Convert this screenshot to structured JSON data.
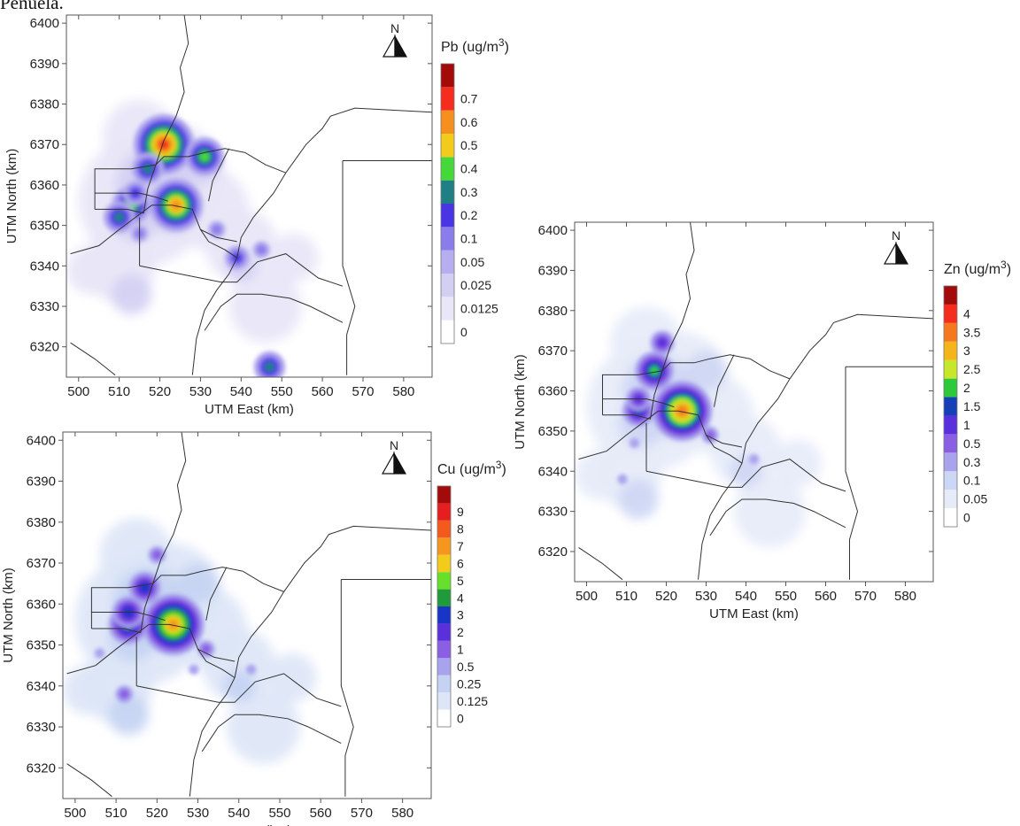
{
  "page": {
    "header_fragment": "Peñuela."
  },
  "chart_data": [
    {
      "id": "pb",
      "type": "heatmap",
      "title": "Pb (ug/m3)",
      "title_main": "Pb (ug/m",
      "title_sup": "3",
      "title_end": ")",
      "north_label": "N",
      "xlabel": "UTM East (km)",
      "ylabel": "UTM North (km)",
      "xlim": [
        497,
        587
      ],
      "ylim": [
        6312.5,
        6402
      ],
      "xticks": [
        500,
        510,
        520,
        530,
        540,
        550,
        560,
        570,
        580
      ],
      "yticks": [
        6320,
        6330,
        6340,
        6350,
        6360,
        6370,
        6380,
        6390,
        6400
      ],
      "legend": {
        "levels": [
          "0",
          "0.0125",
          "0.025",
          "0.05",
          "0.1",
          "0.2",
          "0.3",
          "0.4",
          "0.5",
          "0.6",
          "0.7"
        ],
        "colors": [
          "#ffffff",
          "#e8e6f7",
          "#d3cff3",
          "#b6aeee",
          "#8b7cec",
          "#4a35e4",
          "#1f7f84",
          "#44d838",
          "#f3cc1b",
          "#f68f1e",
          "#f42d1e",
          "#a30a0a"
        ]
      },
      "hotspots": [
        {
          "x": 521,
          "y": 6370,
          "level": 10
        },
        {
          "x": 531,
          "y": 6367,
          "level": 7
        },
        {
          "x": 524,
          "y": 6355,
          "level": 9
        },
        {
          "x": 513,
          "y": 6355,
          "level": 7
        },
        {
          "x": 510,
          "y": 6352,
          "level": 6
        },
        {
          "x": 517,
          "y": 6364,
          "level": 6
        },
        {
          "x": 539,
          "y": 6342,
          "level": 5
        },
        {
          "x": 547,
          "y": 6315,
          "level": 6
        },
        {
          "x": 514,
          "y": 6358,
          "level": 5
        },
        {
          "x": 534,
          "y": 6349,
          "level": 4
        },
        {
          "x": 545,
          "y": 6344,
          "level": 4
        },
        {
          "x": 515,
          "y": 6348,
          "level": 4
        }
      ]
    },
    {
      "id": "cu",
      "type": "heatmap",
      "title": "Cu (ug/m3)",
      "title_main": "Cu (ug/m",
      "title_sup": "3",
      "title_end": ")",
      "north_label": "N",
      "xlabel": "UTM East (km)",
      "ylabel": "UTM North (km)",
      "xlim": [
        497,
        587
      ],
      "ylim": [
        6312.5,
        6402
      ],
      "xticks": [
        500,
        510,
        520,
        530,
        540,
        550,
        560,
        570,
        580
      ],
      "yticks": [
        6320,
        6330,
        6340,
        6350,
        6360,
        6370,
        6380,
        6390,
        6400
      ],
      "legend": {
        "levels": [
          "0",
          "0.125",
          "0.25",
          "0.5",
          "1",
          "2",
          "3",
          "4",
          "5",
          "6",
          "7",
          "8",
          "9"
        ],
        "colors": [
          "#ffffff",
          "#dde6f7",
          "#c4d3f3",
          "#a9a3ee",
          "#8a5fe4",
          "#5a2fdc",
          "#1835c8",
          "#1f9b3b",
          "#67e02c",
          "#f3cc1b",
          "#f6961e",
          "#f45a1e",
          "#e51f1f",
          "#a30a0a"
        ]
      },
      "hotspots": [
        {
          "x": 524,
          "y": 6355,
          "level": 10
        },
        {
          "x": 513,
          "y": 6355,
          "level": 7
        },
        {
          "x": 517,
          "y": 6364,
          "level": 6
        },
        {
          "x": 513,
          "y": 6358,
          "level": 6
        },
        {
          "x": 520,
          "y": 6372,
          "level": 4
        },
        {
          "x": 532,
          "y": 6349,
          "level": 4
        },
        {
          "x": 512,
          "y": 6338,
          "level": 4
        },
        {
          "x": 543,
          "y": 6344,
          "level": 3
        },
        {
          "x": 506,
          "y": 6348,
          "level": 3
        },
        {
          "x": 529,
          "y": 6344,
          "level": 3
        }
      ]
    },
    {
      "id": "zn",
      "type": "heatmap",
      "title": "Zn (ug/m3)",
      "title_main": "Zn (ug/m",
      "title_sup": "3",
      "title_end": ")",
      "north_label": "N",
      "xlabel": "UTM East (km)",
      "ylabel": "UTM North (km)",
      "xlim": [
        497,
        587
      ],
      "ylim": [
        6312.5,
        6402
      ],
      "xticks": [
        500,
        510,
        520,
        530,
        540,
        550,
        560,
        570,
        580
      ],
      "yticks": [
        6320,
        6330,
        6340,
        6350,
        6360,
        6370,
        6380,
        6390,
        6400
      ],
      "legend": {
        "levels": [
          "0",
          "0.05",
          "0.1",
          "0.3",
          "0.5",
          "1",
          "1.5",
          "2",
          "2.5",
          "3",
          "3.5",
          "4"
        ],
        "colors": [
          "#ffffff",
          "#e6ebf8",
          "#cdd6f4",
          "#a9a3ee",
          "#8a5fe4",
          "#5a2fdc",
          "#1740b8",
          "#2ec93a",
          "#c7e82a",
          "#f3b51b",
          "#f6781e",
          "#f42d1e",
          "#a30a0a"
        ]
      },
      "hotspots": [
        {
          "x": 524,
          "y": 6355,
          "level": 10
        },
        {
          "x": 517,
          "y": 6365,
          "level": 7
        },
        {
          "x": 513,
          "y": 6355,
          "level": 6
        },
        {
          "x": 513,
          "y": 6358,
          "level": 5
        },
        {
          "x": 519,
          "y": 6372,
          "level": 5
        },
        {
          "x": 531,
          "y": 6349,
          "level": 4
        },
        {
          "x": 542,
          "y": 6343,
          "level": 3
        },
        {
          "x": 512,
          "y": 6347,
          "level": 3
        },
        {
          "x": 509,
          "y": 6338,
          "level": 3
        }
      ]
    }
  ]
}
